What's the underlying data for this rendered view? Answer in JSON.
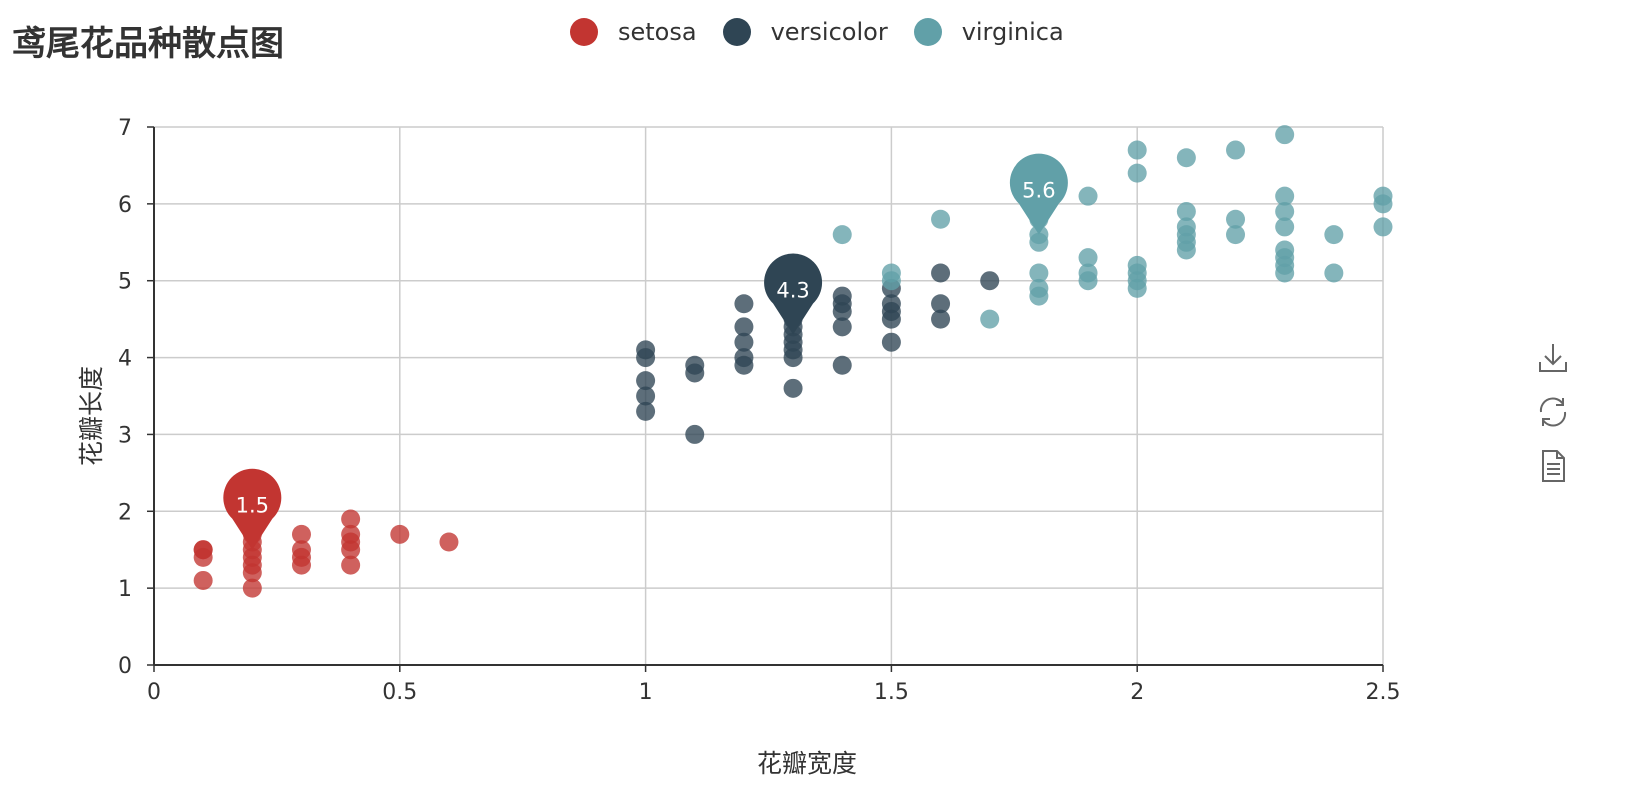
{
  "chart_data": {
    "type": "scatter",
    "title": "鸢尾花品种散点图",
    "xlabel": "花瓣宽度",
    "ylabel": "花瓣长度",
    "xlim": [
      0,
      2.5
    ],
    "ylim": [
      0,
      7
    ],
    "xticks": [
      "0",
      "0.5",
      "1",
      "1.5",
      "2",
      "2.5"
    ],
    "yticks": [
      "0",
      "1",
      "2",
      "3",
      "4",
      "5",
      "6",
      "7"
    ],
    "grid": true,
    "legend_position": "top-center",
    "series": [
      {
        "name": "setosa",
        "color": "#c23531",
        "markpoint": {
          "x": 0.2,
          "y": 1.5,
          "label": "1.5"
        },
        "points": [
          [
            0.1,
            1.1
          ],
          [
            0.1,
            1.4
          ],
          [
            0.1,
            1.5
          ],
          [
            0.1,
            1.5
          ],
          [
            0.2,
            1.0
          ],
          [
            0.2,
            1.2
          ],
          [
            0.2,
            1.3
          ],
          [
            0.2,
            1.4
          ],
          [
            0.2,
            1.5
          ],
          [
            0.2,
            1.6
          ],
          [
            0.2,
            1.7
          ],
          [
            0.3,
            1.3
          ],
          [
            0.3,
            1.4
          ],
          [
            0.3,
            1.5
          ],
          [
            0.3,
            1.7
          ],
          [
            0.4,
            1.3
          ],
          [
            0.4,
            1.5
          ],
          [
            0.4,
            1.6
          ],
          [
            0.4,
            1.7
          ],
          [
            0.4,
            1.9
          ],
          [
            0.5,
            1.7
          ],
          [
            0.6,
            1.6
          ]
        ]
      },
      {
        "name": "versicolor",
        "color": "#2f4554",
        "markpoint": {
          "x": 1.3,
          "y": 4.3,
          "label": "4.3"
        },
        "points": [
          [
            1.0,
            3.3
          ],
          [
            1.0,
            3.5
          ],
          [
            1.0,
            3.7
          ],
          [
            1.0,
            4.0
          ],
          [
            1.0,
            4.1
          ],
          [
            1.1,
            3.0
          ],
          [
            1.1,
            3.8
          ],
          [
            1.1,
            3.9
          ],
          [
            1.2,
            3.9
          ],
          [
            1.2,
            4.0
          ],
          [
            1.2,
            4.2
          ],
          [
            1.2,
            4.4
          ],
          [
            1.2,
            4.7
          ],
          [
            1.3,
            3.6
          ],
          [
            1.3,
            4.0
          ],
          [
            1.3,
            4.1
          ],
          [
            1.3,
            4.2
          ],
          [
            1.3,
            4.3
          ],
          [
            1.3,
            4.4
          ],
          [
            1.3,
            4.5
          ],
          [
            1.3,
            4.6
          ],
          [
            1.4,
            3.9
          ],
          [
            1.4,
            4.4
          ],
          [
            1.4,
            4.6
          ],
          [
            1.4,
            4.7
          ],
          [
            1.4,
            4.8
          ],
          [
            1.5,
            4.2
          ],
          [
            1.5,
            4.5
          ],
          [
            1.5,
            4.6
          ],
          [
            1.5,
            4.7
          ],
          [
            1.5,
            4.9
          ],
          [
            1.6,
            4.5
          ],
          [
            1.6,
            4.7
          ],
          [
            1.6,
            5.1
          ],
          [
            1.7,
            5.0
          ]
        ]
      },
      {
        "name": "virginica",
        "color": "#61a0a8",
        "markpoint": {
          "x": 1.8,
          "y": 5.6,
          "label": "5.6"
        },
        "points": [
          [
            1.4,
            5.6
          ],
          [
            1.5,
            5.0
          ],
          [
            1.5,
            5.1
          ],
          [
            1.6,
            5.8
          ],
          [
            1.7,
            4.5
          ],
          [
            1.8,
            4.8
          ],
          [
            1.8,
            4.9
          ],
          [
            1.8,
            5.1
          ],
          [
            1.8,
            5.5
          ],
          [
            1.8,
            5.6
          ],
          [
            1.8,
            5.8
          ],
          [
            1.9,
            5.0
          ],
          [
            1.9,
            5.1
          ],
          [
            1.9,
            5.3
          ],
          [
            1.9,
            6.1
          ],
          [
            2.0,
            4.9
          ],
          [
            2.0,
            5.0
          ],
          [
            2.0,
            5.1
          ],
          [
            2.0,
            5.2
          ],
          [
            2.0,
            6.4
          ],
          [
            2.0,
            6.7
          ],
          [
            2.1,
            5.4
          ],
          [
            2.1,
            5.5
          ],
          [
            2.1,
            5.6
          ],
          [
            2.1,
            5.7
          ],
          [
            2.1,
            5.9
          ],
          [
            2.1,
            6.6
          ],
          [
            2.2,
            5.6
          ],
          [
            2.2,
            5.8
          ],
          [
            2.2,
            6.7
          ],
          [
            2.3,
            5.1
          ],
          [
            2.3,
            5.2
          ],
          [
            2.3,
            5.3
          ],
          [
            2.3,
            5.4
          ],
          [
            2.3,
            5.7
          ],
          [
            2.3,
            5.9
          ],
          [
            2.3,
            6.1
          ],
          [
            2.3,
            6.9
          ],
          [
            2.4,
            5.1
          ],
          [
            2.4,
            5.6
          ],
          [
            2.5,
            5.7
          ],
          [
            2.5,
            6.0
          ],
          [
            2.5,
            6.1
          ]
        ]
      }
    ]
  },
  "toolbox": {
    "icons": [
      "download-icon",
      "refresh-icon",
      "data-view-icon"
    ]
  }
}
